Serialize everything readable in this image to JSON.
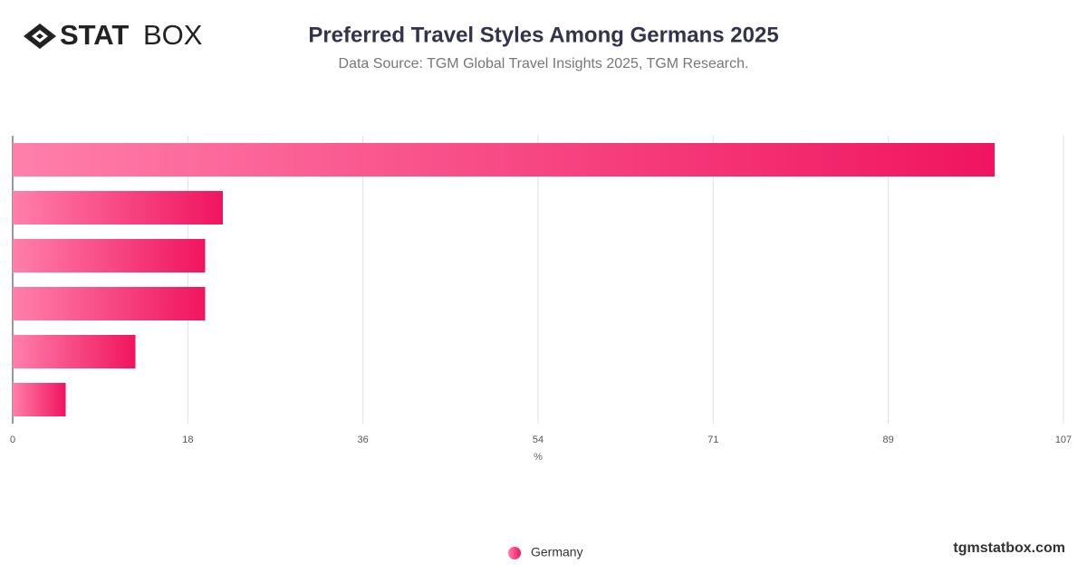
{
  "logo": {
    "bold": "STAT",
    "light": "BOX"
  },
  "footer": "tgmstatbox.com",
  "chart_data": {
    "type": "bar",
    "orientation": "horizontal",
    "title": "Preferred Travel Styles Among Germans 2025",
    "subtitle": "Data Source: TGM Global Travel Insights 2025, TGM Research.",
    "x_label": "%",
    "categories": [
      null,
      null,
      null,
      null,
      null,
      null
    ],
    "series": [
      {
        "name": "Germany",
        "color": "#f0145f",
        "values": [
          100,
          21.4,
          19.6,
          19.6,
          12.5,
          5.4
        ]
      }
    ],
    "xlim": [
      0,
      107
    ],
    "xticks": [
      0,
      {
        "value": 17.833,
        "label": "18"
      },
      {
        "value": 35.667,
        "label": "36"
      },
      {
        "value": 53.5,
        "label": "54"
      },
      {
        "value": 71.333,
        "label": "71"
      },
      {
        "value": 89.167,
        "label": "89"
      },
      107
    ],
    "grid": true,
    "legend": "bottom"
  }
}
